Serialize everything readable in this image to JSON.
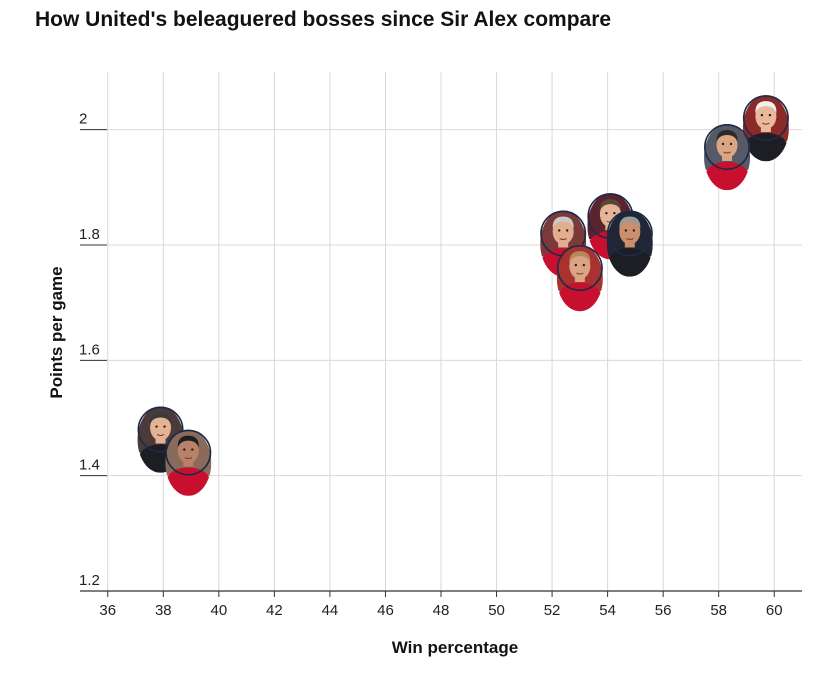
{
  "chart_data": {
    "type": "scatter",
    "title": "How United's beleaguered bosses since Sir Alex compare",
    "xlabel": "Win percentage",
    "ylabel": "Points per game",
    "xlim": [
      35,
      61
    ],
    "ylim": [
      1.2,
      2.1
    ],
    "x_ticks": [
      36,
      38,
      40,
      42,
      44,
      46,
      48,
      50,
      52,
      54,
      56,
      58,
      60
    ],
    "y_ticks": [
      1.2,
      1.4,
      1.6,
      1.8,
      2.0
    ],
    "y_tick_labels": [
      "1.2",
      "1.4",
      "1.6",
      "1.8",
      "2"
    ],
    "grid": true,
    "marker": "manager-headshot-icon",
    "points": [
      {
        "x": 59.7,
        "y": 2.02
      },
      {
        "x": 58.3,
        "y": 1.97
      },
      {
        "x": 54.1,
        "y": 1.85
      },
      {
        "x": 54.8,
        "y": 1.82
      },
      {
        "x": 52.4,
        "y": 1.82
      },
      {
        "x": 53.0,
        "y": 1.76
      },
      {
        "x": 37.9,
        "y": 1.48
      },
      {
        "x": 38.9,
        "y": 1.44
      }
    ],
    "colors": {
      "grid": "#d9d9d9",
      "axis": "#333333",
      "text": "#222222",
      "marker_border": "#1c2b4a",
      "jersey_red": "#c8102e"
    }
  }
}
